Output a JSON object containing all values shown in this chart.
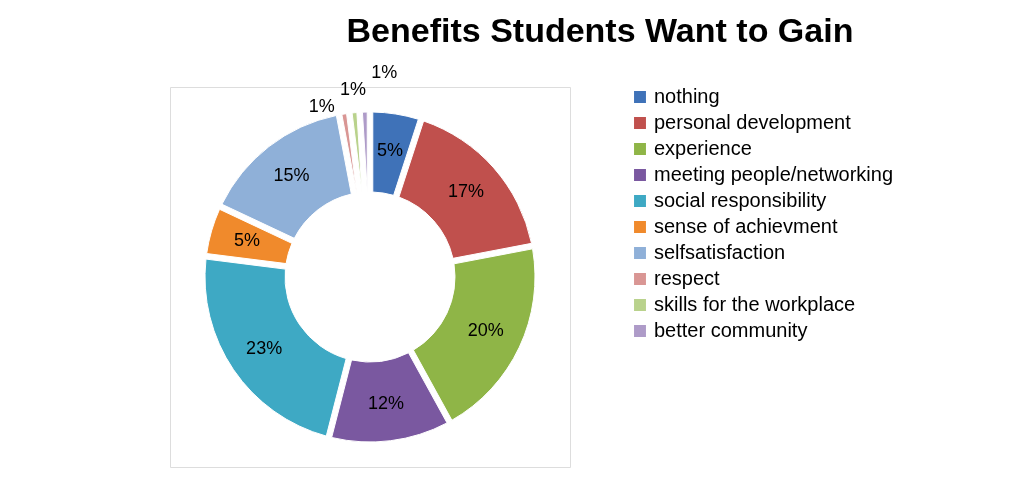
{
  "chart_data": {
    "type": "donut",
    "title": "Benefits Students Want to Gain",
    "categories": [
      "nothing",
      "personal development",
      "experience",
      "meeting people/networking",
      "social responsibility",
      "sense of achievment",
      "selfsatisfaction",
      "respect",
      "skills for the workplace",
      "better community"
    ],
    "values": [
      5,
      17,
      20,
      12,
      23,
      5,
      15,
      1,
      1,
      1
    ],
    "value_labels": [
      "5%",
      "17%",
      "20%",
      "12%",
      "23%",
      "5%",
      "15%",
      "1%",
      "1%",
      "1%"
    ],
    "colors": [
      "#3f72b8",
      "#c0504d",
      "#8fb547",
      "#7a58a0",
      "#3ea9c4",
      "#f08a2c",
      "#8fb0d8",
      "#d99694",
      "#b9d28c",
      "#ae9bc8"
    ],
    "legend": "right"
  }
}
